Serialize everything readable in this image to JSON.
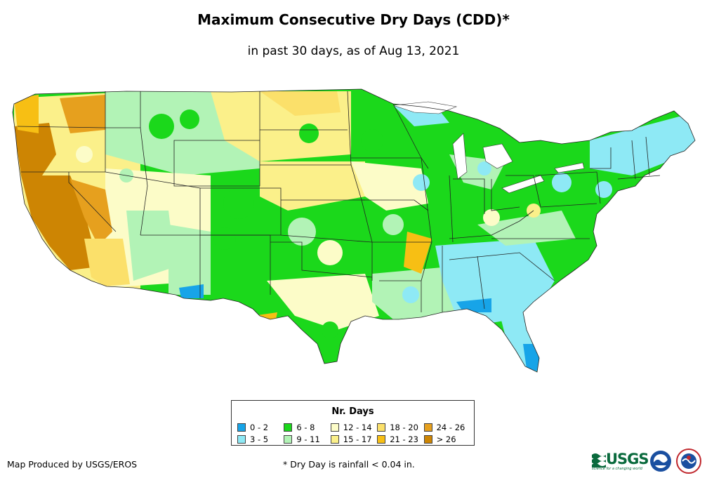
{
  "title": "Maximum Consecutive Dry Days (CDD)*",
  "subtitle": "in past 30 days, as of Aug 13, 2021",
  "legend": {
    "title": "Nr. Days",
    "items": [
      {
        "label": "0 - 2",
        "color": "#17a4e8"
      },
      {
        "label": "6 - 8",
        "color": "#1bd81b"
      },
      {
        "label": "12 - 14",
        "color": "#fcfcc8"
      },
      {
        "label": "18 - 20",
        "color": "#fbe06a"
      },
      {
        "label": "24 - 26",
        "color": "#e6a01e"
      },
      {
        "label": "3 - 5",
        "color": "#8ee9f5"
      },
      {
        "label": "9 - 11",
        "color": "#b2f3b6"
      },
      {
        "label": "15 - 17",
        "color": "#fbf08a"
      },
      {
        "label": "21 - 23",
        "color": "#f7bf14"
      },
      {
        "label": "> 26",
        "color": "#cd8503"
      }
    ]
  },
  "credit": "Map Produced by USGS/EROS",
  "footnote": "* Dry Day is rainfall < 0.04 in.",
  "logos": {
    "usgs": "USGS",
    "usgs_tagline": "science for a changing world"
  }
}
